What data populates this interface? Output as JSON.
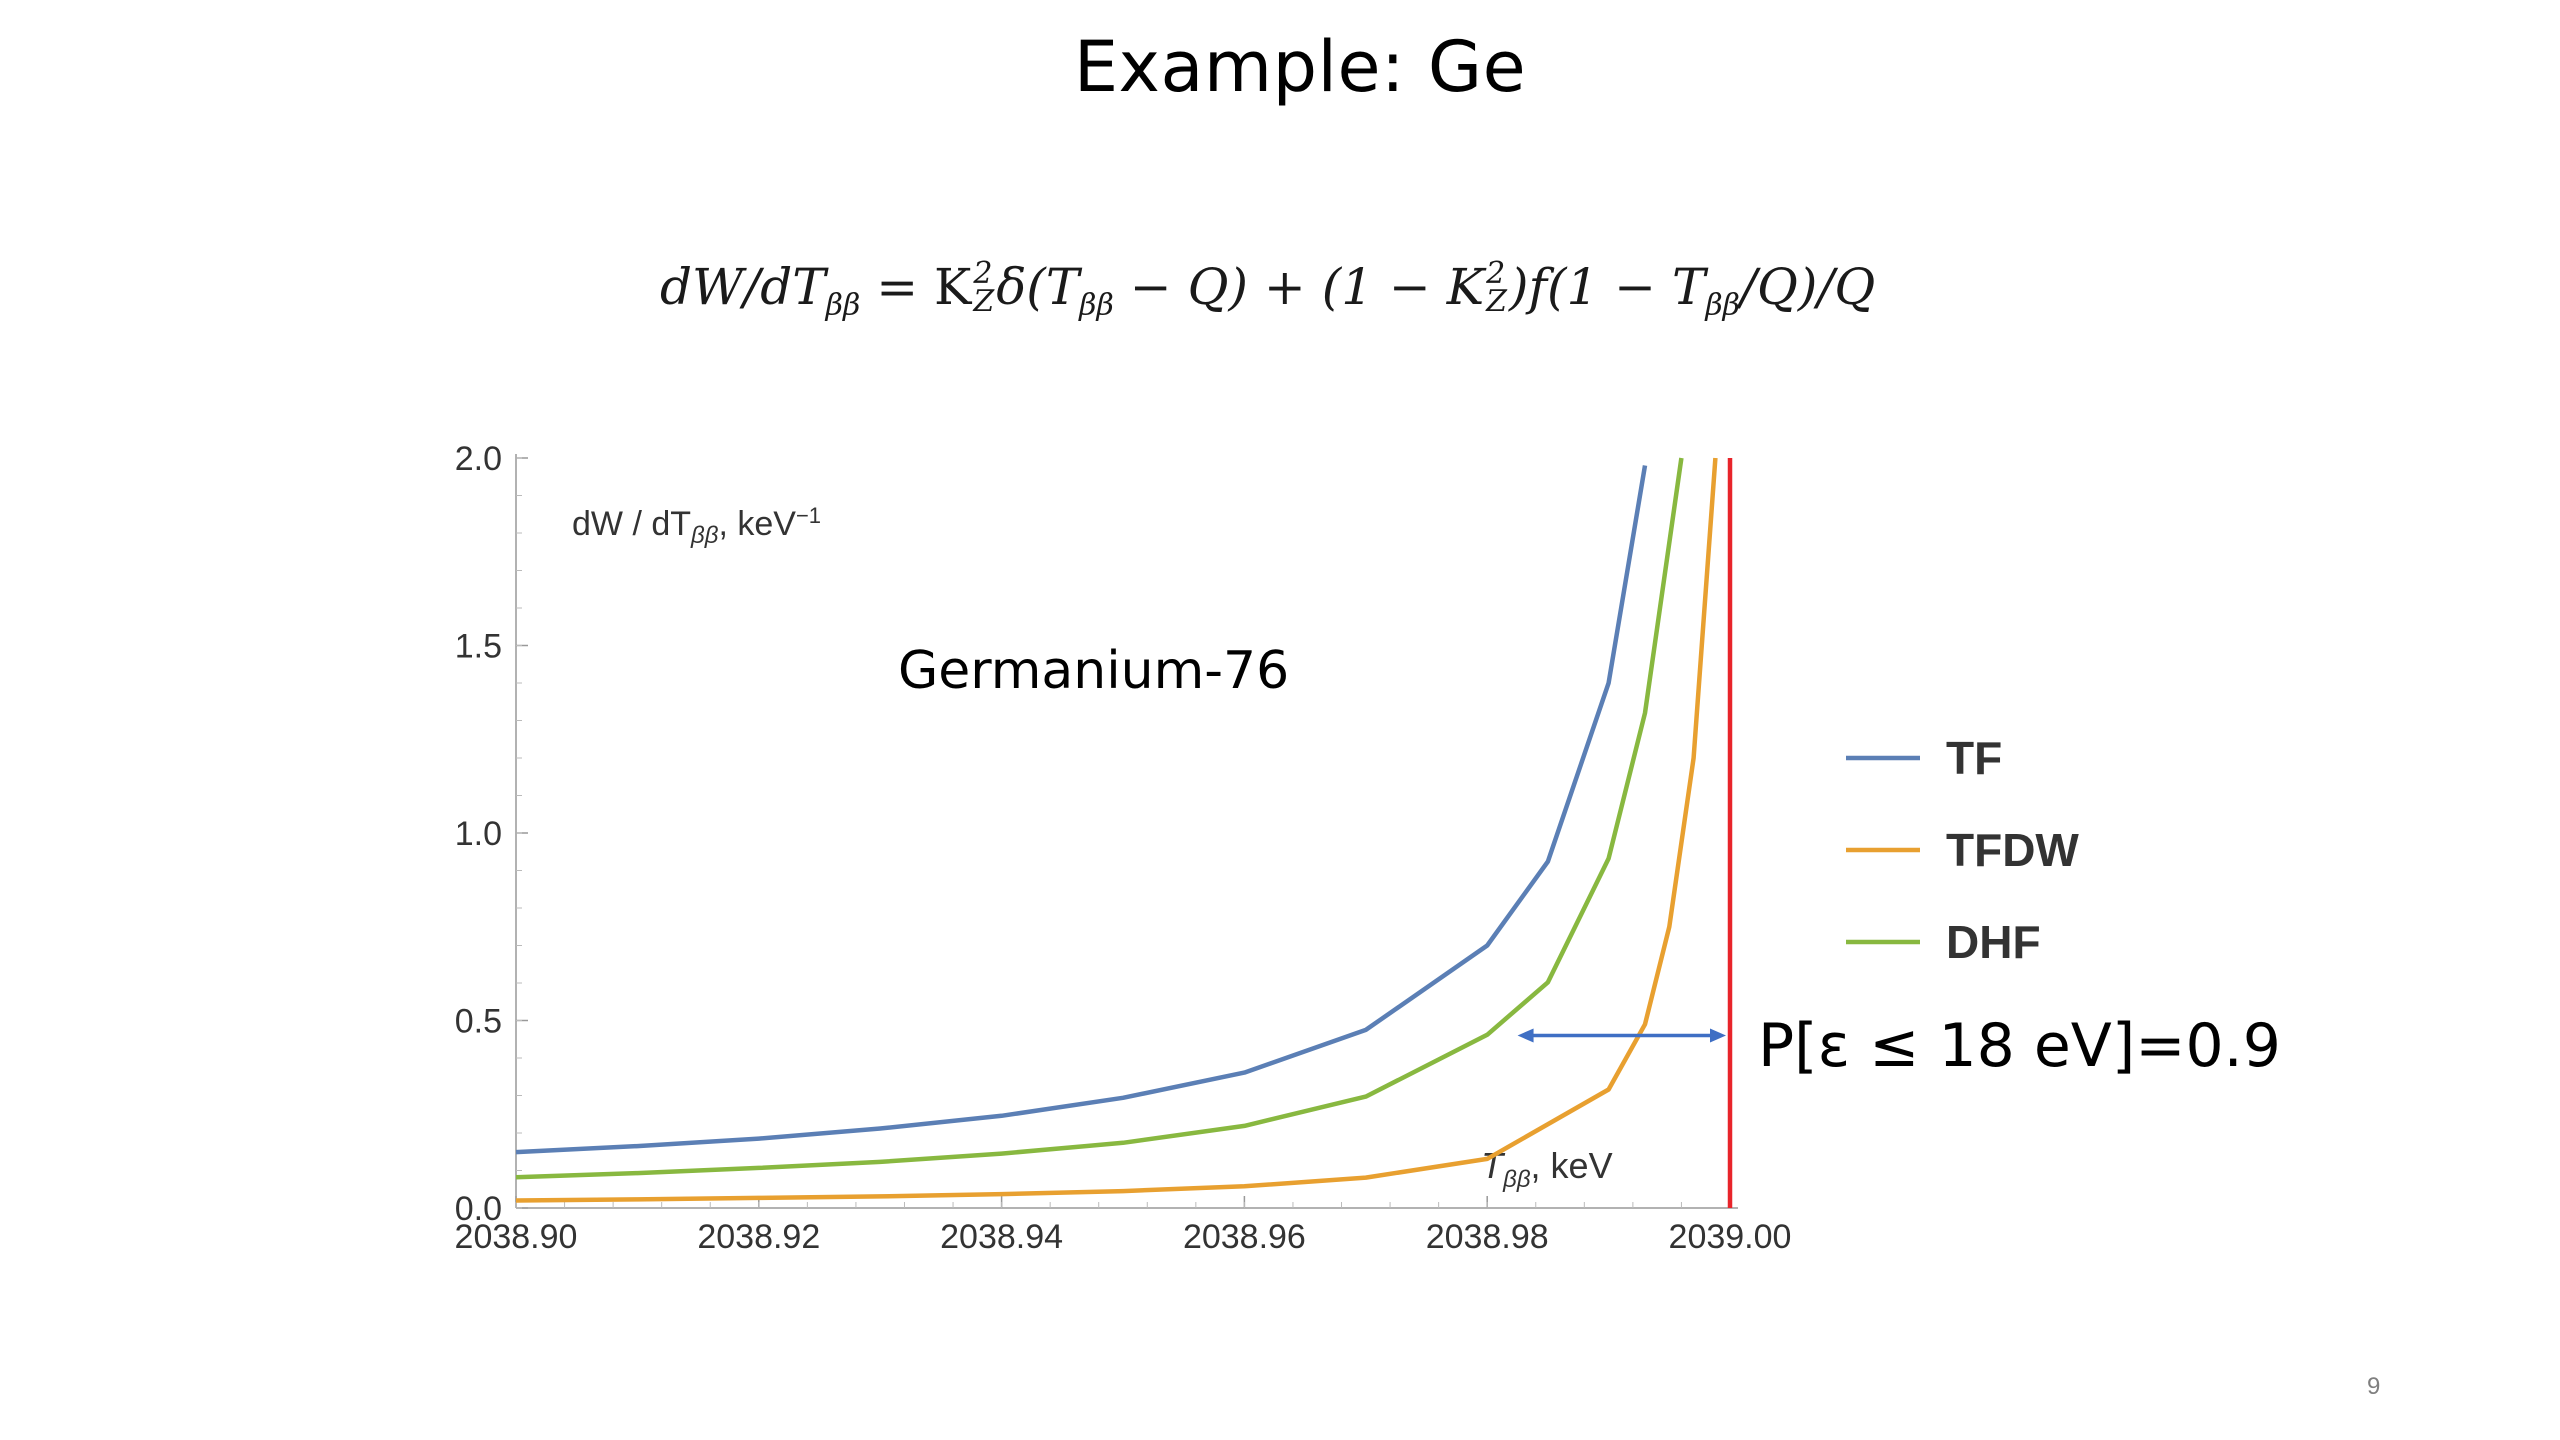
{
  "slide": {
    "title": "Example: Ge",
    "page_number": "9"
  },
  "formula": {
    "lhs": "dW/dT",
    "sub_bb": "ββ",
    "eq": " = K",
    "sup2": "2",
    "subZ": "Z",
    "delta_open": "δ(T",
    "minus_q_close": " − Q) + (1 − K",
    "f_open": ")f(1 − T",
    "over_q_close": "/Q)/Q"
  },
  "chart_data": {
    "type": "line",
    "xlabel": "T",
    "xlabel_sub": "ββ",
    "xlabel_unit": ", keV",
    "ylabel": "dW / dT",
    "ylabel_sub": "ββ",
    "ylabel_unit": ", keV",
    "ylabel_sup": "−1",
    "xlim": [
      2038.9,
      2039.0
    ],
    "ylim": [
      0.0,
      2.0
    ],
    "x_ticks": [
      "2038.90",
      "2038.92",
      "2038.94",
      "2038.96",
      "2038.98",
      "2039.00"
    ],
    "y_ticks": [
      "0.0",
      "0.5",
      "1.0",
      "1.5",
      "2.0"
    ],
    "series": [
      {
        "name": "TF",
        "color": "#5b7fb5",
        "points": [
          [
            2038.9,
            0.149
          ],
          [
            2038.91,
            0.165
          ],
          [
            2038.92,
            0.185
          ],
          [
            2038.93,
            0.212
          ],
          [
            2038.94,
            0.246
          ],
          [
            2038.95,
            0.294
          ],
          [
            2038.96,
            0.361
          ],
          [
            2038.97,
            0.475
          ],
          [
            2038.98,
            0.7
          ],
          [
            2038.985,
            0.924
          ],
          [
            2038.99,
            1.4
          ],
          [
            2038.993,
            1.98
          ]
        ]
      },
      {
        "name": "TFDW",
        "color": "#e8a030",
        "points": [
          [
            2038.9,
            0.02
          ],
          [
            2038.91,
            0.023
          ],
          [
            2038.92,
            0.027
          ],
          [
            2038.93,
            0.031
          ],
          [
            2038.94,
            0.037
          ],
          [
            2038.95,
            0.045
          ],
          [
            2038.96,
            0.058
          ],
          [
            2038.97,
            0.081
          ],
          [
            2038.98,
            0.131
          ],
          [
            2038.99,
            0.316
          ],
          [
            2038.993,
            0.49
          ],
          [
            2038.995,
            0.75
          ],
          [
            2038.997,
            1.2
          ],
          [
            2038.9988,
            2.0
          ]
        ]
      },
      {
        "name": "DHF",
        "color": "#88b840",
        "points": [
          [
            2038.9,
            0.082
          ],
          [
            2038.91,
            0.093
          ],
          [
            2038.92,
            0.107
          ],
          [
            2038.93,
            0.123
          ],
          [
            2038.94,
            0.145
          ],
          [
            2038.95,
            0.174
          ],
          [
            2038.96,
            0.219
          ],
          [
            2038.97,
            0.297
          ],
          [
            2038.98,
            0.462
          ],
          [
            2038.985,
            0.602
          ],
          [
            2038.99,
            0.932
          ],
          [
            2038.993,
            1.32
          ],
          [
            2038.996,
            2.0
          ]
        ]
      }
    ],
    "vertical_line": {
      "x": 2039.0,
      "color": "#e8242a"
    },
    "annotations": {
      "nucleus": "Germanium-76",
      "probability": "P[ε ≤ 18 eV]=0.9",
      "arrow_x": [
        2038.9825,
        2039.0
      ],
      "arrow_y": 0.46,
      "arrow_color": "#3f6fc4"
    },
    "legend": {
      "placement": "right"
    },
    "grid": false
  }
}
